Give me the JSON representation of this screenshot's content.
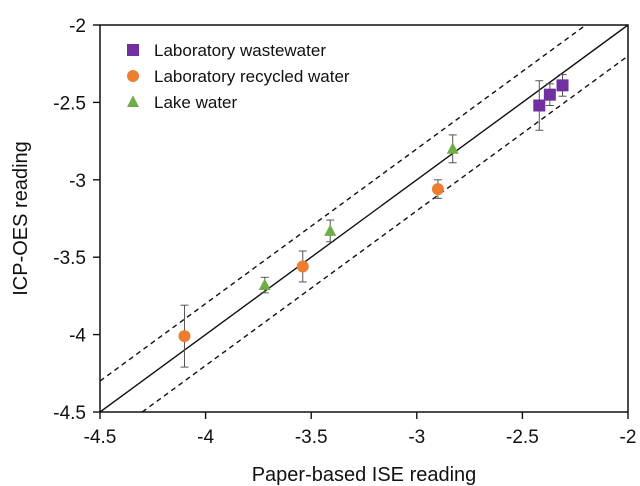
{
  "chart_data": {
    "type": "scatter",
    "title": "",
    "xlabel": "Paper-based ISE reading",
    "ylabel": "ICP-OES reading",
    "xlim": [
      -4.5,
      -2
    ],
    "ylim": [
      -4.5,
      -2
    ],
    "xticks": [
      -4.5,
      -4,
      -3.5,
      -3,
      -2.5,
      -2
    ],
    "yticks": [
      -4.5,
      -4,
      -3.5,
      -3,
      -2.5,
      -2
    ],
    "xtick_labels": [
      "-4.5",
      "-4",
      "-3.5",
      "-3",
      "-2.5",
      "-2"
    ],
    "ytick_labels": [
      "-4.5",
      "-4",
      "-3.5",
      "-3",
      "-2.5",
      "-2"
    ],
    "grid": false,
    "legend_position": "top-left",
    "reference_lines": [
      {
        "kind": "identity",
        "style": "solid",
        "offset": 0
      },
      {
        "kind": "identity",
        "style": "dashed",
        "offset": 0.2
      },
      {
        "kind": "identity",
        "style": "dashed",
        "offset": -0.2
      }
    ],
    "series": [
      {
        "name": "Laboratory wastewater",
        "marker": "square",
        "color": "#7030A0",
        "points": [
          {
            "x": -2.42,
            "y": -2.52,
            "err": 0.16
          },
          {
            "x": -2.37,
            "y": -2.45,
            "err": 0.07
          },
          {
            "x": -2.31,
            "y": -2.39,
            "err": 0.07
          }
        ]
      },
      {
        "name": "Laboratory recycled water",
        "marker": "circle",
        "color": "#ED7D31",
        "points": [
          {
            "x": -4.1,
            "y": -4.01,
            "err": 0.2
          },
          {
            "x": -3.54,
            "y": -3.56,
            "err": 0.1
          },
          {
            "x": -2.9,
            "y": -3.06,
            "err": 0.06
          }
        ]
      },
      {
        "name": "Lake water",
        "marker": "triangle",
        "color": "#70AD47",
        "points": [
          {
            "x": -3.72,
            "y": -3.68,
            "err": 0.05
          },
          {
            "x": -3.41,
            "y": -3.33,
            "err": 0.07
          },
          {
            "x": -2.83,
            "y": -2.8,
            "err": 0.09
          }
        ]
      }
    ]
  }
}
